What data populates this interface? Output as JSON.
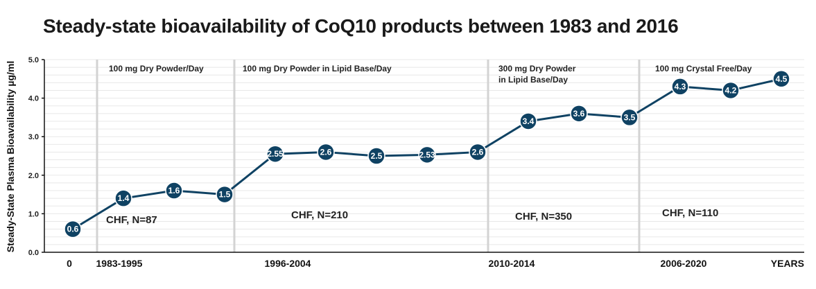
{
  "chart_data": {
    "type": "line",
    "title": "Steady-state bioavailability of CoQ10 products between 1983 and 2016",
    "ylabel": "Steady-State Plasma Bioavailability µg/ml",
    "xlabel": "",
    "ylim": [
      0,
      5
    ],
    "yticks": [
      "0.0",
      "1.0",
      "2.0",
      "3.0",
      "4.0",
      "5.0"
    ],
    "xticks": [
      "0",
      "1983-1995",
      "1996-2004",
      "2010-2014",
      "2006-2020",
      "YEARS"
    ],
    "grid": true,
    "series": [
      {
        "values": [
          0.6,
          1.4,
          1.6,
          1.5,
          2.55,
          2.6,
          2.5,
          2.53,
          2.6,
          3.4,
          3.6,
          3.5,
          4.3,
          4.2,
          4.5
        ],
        "labels": [
          "0.6",
          "1.4",
          "1.6",
          "1.5",
          "2.55",
          "2.6",
          "2.5",
          "2.53",
          "2.6",
          "3.4",
          "3.6",
          "3.5",
          "4.3",
          "4.2",
          "4.5"
        ]
      }
    ],
    "period_labels": [
      [
        "100 mg Dry Powder/Day"
      ],
      [
        "100 mg Dry Powder in Lipid Base/Day"
      ],
      [
        "300 mg Dry Powder",
        "in Lipid Base/Day"
      ],
      [
        "100 mg Crystal Free/Day"
      ]
    ],
    "group_annotations": [
      "CHF, N=87",
      "CHF, N=210",
      "CHF, N=350",
      "CHF, N=110"
    ],
    "colors": {
      "series": "#0f4263",
      "separator": "#d3d3d3",
      "grid": "#e8e8e8"
    }
  }
}
